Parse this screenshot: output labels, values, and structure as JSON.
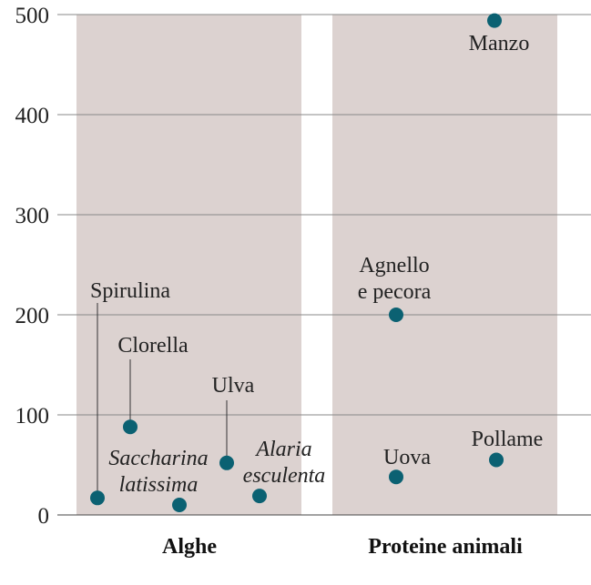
{
  "chart_data": {
    "type": "scatter",
    "title": "",
    "xlabel": "",
    "ylabel": "",
    "ylim": [
      0,
      500
    ],
    "yticks": [
      0,
      100,
      200,
      300,
      400,
      500
    ],
    "grid": true,
    "colors": {
      "point": "#0b6172",
      "band": "#dcd2d0",
      "grid": "#888888",
      "text": "#222222"
    },
    "groups": [
      {
        "label": "Alghe",
        "points": [
          {
            "label_lines": [
              "Spirulina"
            ],
            "italic": false,
            "y": 17
          },
          {
            "label_lines": [
              "Clorella"
            ],
            "italic": false,
            "y": 88
          },
          {
            "label_lines": [
              "Saccharina",
              "latissima"
            ],
            "italic": true,
            "y": 10
          },
          {
            "label_lines": [
              "Ulva"
            ],
            "italic": false,
            "y": 52
          },
          {
            "label_lines": [
              "Alaria",
              "esculenta"
            ],
            "italic": true,
            "y": 19
          }
        ]
      },
      {
        "label": "Proteine animali",
        "points": [
          {
            "label_lines": [
              "Manzo"
            ],
            "italic": false,
            "y": 494
          },
          {
            "label_lines": [
              "Agnello",
              "e pecora"
            ],
            "italic": false,
            "y": 200
          },
          {
            "label_lines": [
              "Uova"
            ],
            "italic": false,
            "y": 38
          },
          {
            "label_lines": [
              "Pollame"
            ],
            "italic": false,
            "y": 55
          }
        ]
      }
    ]
  }
}
